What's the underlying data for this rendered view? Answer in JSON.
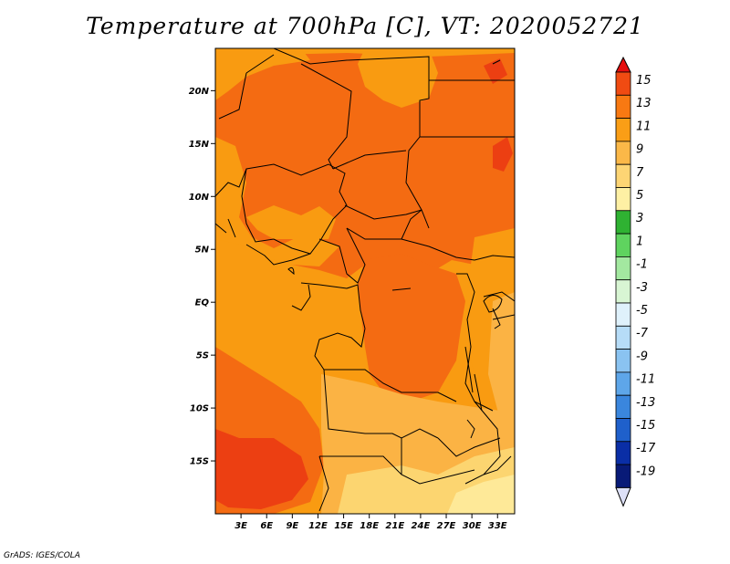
{
  "title": "Temperature at 700hPa [C], VT: 2020052721",
  "credit": "GrADS: IGES/COLA",
  "map": {
    "lon_range": [
      0,
      35
    ],
    "lat_range": [
      -20,
      24
    ],
    "lat_ticks": [
      {
        "value": 20,
        "label": "20N"
      },
      {
        "value": 15,
        "label": "15N"
      },
      {
        "value": 10,
        "label": "10N"
      },
      {
        "value": 5,
        "label": "5N"
      },
      {
        "value": 0,
        "label": "EQ"
      },
      {
        "value": -5,
        "label": "5S"
      },
      {
        "value": -10,
        "label": "10S"
      },
      {
        "value": -15,
        "label": "15S"
      }
    ],
    "lon_ticks": [
      {
        "value": 3,
        "label": "3E"
      },
      {
        "value": 6,
        "label": "6E"
      },
      {
        "value": 9,
        "label": "9E"
      },
      {
        "value": 12,
        "label": "12E"
      },
      {
        "value": 15,
        "label": "15E"
      },
      {
        "value": 18,
        "label": "18E"
      },
      {
        "value": 21,
        "label": "21E"
      },
      {
        "value": 24,
        "label": "24E"
      },
      {
        "value": 27,
        "label": "27E"
      },
      {
        "value": 30,
        "label": "30E"
      },
      {
        "value": 33,
        "label": "33E"
      }
    ],
    "colors": {
      "c7_9": "#fbb344",
      "c9_11": "#f99b11",
      "c11_13": "#f46b12",
      "c13_15": "#ec3f12",
      "c5_7": "#fcd570",
      "c3_5": "#fee998",
      "border": "#000000"
    }
  },
  "colorbar": {
    "labels": [
      "15",
      "13",
      "11",
      "9",
      "7",
      "5",
      "3",
      "1",
      "-1",
      "-3",
      "-5",
      "-7",
      "-9",
      "-11",
      "-13",
      "-15",
      "-17",
      "-19"
    ],
    "colors": [
      "#e60f0f",
      "#f04b12",
      "#f87912",
      "#fa9e16",
      "#fbb848",
      "#fdd574",
      "#fef0a4",
      "#2fb232",
      "#5fd35f",
      "#a3e8a0",
      "#d8f5d3",
      "#dff1fb",
      "#b6dcf7",
      "#8ac3f1",
      "#5ea6e9",
      "#3a86dd",
      "#1f60cb",
      "#0a2ea6",
      "#081a77",
      "#dde0f7"
    ]
  }
}
